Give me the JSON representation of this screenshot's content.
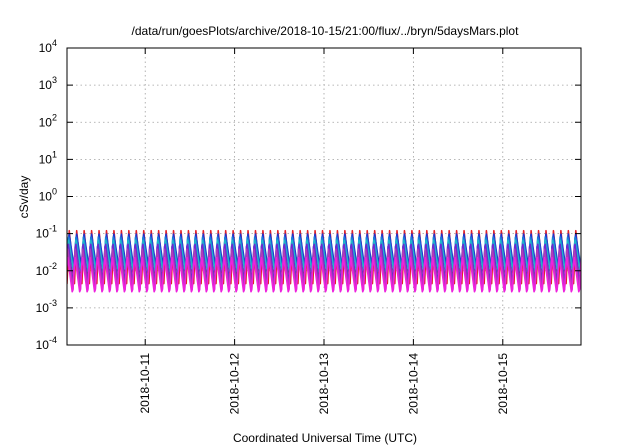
{
  "chart_data": {
    "type": "line",
    "title": "/data/run/goesPlots/archive/2018-10-15/21:00/flux/../bryn/5daysMars.plot",
    "xlabel": "Coordinated Universal Time (UTC)",
    "ylabel": "cSv/day",
    "x_range": [
      "2018-10-10T03:00",
      "2018-10-15T21:00"
    ],
    "xticks": [
      "2018-10-11",
      "2018-10-12",
      "2018-10-13",
      "2018-10-14",
      "2018-10-15"
    ],
    "y_scale": "log",
    "ylim": [
      0.0001,
      10000
    ],
    "yticks": [
      {
        "base": "10",
        "exp": "-4"
      },
      {
        "base": "10",
        "exp": "-3"
      },
      {
        "base": "10",
        "exp": "-2"
      },
      {
        "base": "10",
        "exp": "-1"
      },
      {
        "base": "10",
        "exp": "0"
      },
      {
        "base": "10",
        "exp": "1"
      },
      {
        "base": "10",
        "exp": "2"
      },
      {
        "base": "10",
        "exp": "3"
      },
      {
        "base": "10",
        "exp": "4"
      }
    ],
    "grid": true,
    "legend": "none",
    "cycles_per_day": 12,
    "series": [
      {
        "color": "#e0222a",
        "peak": 0.12,
        "trough": 0.0045
      },
      {
        "color": "#2233cc",
        "peak": 0.11,
        "trough": 0.012
      },
      {
        "color": "#1a7ad8",
        "peak": 0.095,
        "trough": 0.0085
      },
      {
        "color": "#1fb8c8",
        "peak": 0.07,
        "trough": 0.0095
      },
      {
        "color": "#6c2ad0",
        "peak": 0.065,
        "trough": 0.0042
      },
      {
        "color": "#b03ab8",
        "peak": 0.038,
        "trough": 0.0032
      },
      {
        "color": "#ee22dd",
        "peak": 0.026,
        "trough": 0.0022
      }
    ]
  }
}
